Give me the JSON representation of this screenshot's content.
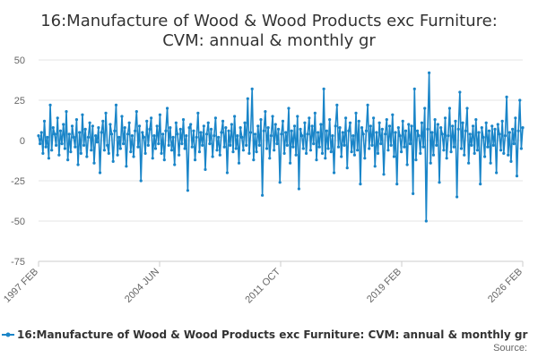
{
  "chart_data": {
    "type": "line",
    "title_line1": "16:Manufacture of Wood & Wood Products exc Furniture:",
    "title_line2": "CVM: annual & monthly gr",
    "ylim": [
      -75,
      50
    ],
    "yticks": [
      50,
      25,
      0,
      -25,
      -50,
      -75
    ],
    "xticks": [
      "1997 FEB",
      "2004 JUN",
      "2011 OCT",
      "2019 FEB",
      "2026 FEB"
    ],
    "grid": true,
    "legend_position": "bottom",
    "color": "#1a85c8",
    "x_start": "1997 FEB",
    "x_end": "2026 FEB",
    "series": [
      {
        "name": "16:Manufacture of Wood & Wood Products exc Furniture: CVM: annual & monthly gr",
        "values": [
          3,
          -2,
          5,
          -8,
          12,
          -4,
          2,
          -11,
          22,
          -6,
          8,
          4,
          -3,
          14,
          -9,
          6,
          -2,
          10,
          -5,
          18,
          -12,
          4,
          -7,
          9,
          2,
          -4,
          13,
          -15,
          5,
          -8,
          16,
          -3,
          7,
          -10,
          2,
          11,
          -6,
          9,
          -14,
          3,
          -1,
          8,
          -20,
          5,
          12,
          -6,
          17,
          -3,
          -8,
          10,
          4,
          -13,
          6,
          22,
          -9,
          2,
          -5,
          15,
          -2,
          8,
          -16,
          4,
          11,
          -7,
          3,
          -10,
          6,
          18,
          -4,
          9,
          -25,
          5,
          2,
          -8,
          12,
          -3,
          7,
          14,
          -11,
          3,
          -5,
          9,
          -2,
          16,
          -8,
          4,
          -12,
          6,
          20,
          -3,
          8,
          -6,
          2,
          -15,
          11,
          4,
          -9,
          7,
          -2,
          13,
          -5,
          3,
          -31,
          8,
          10,
          -4,
          6,
          -12,
          2,
          17,
          -7,
          5,
          -3,
          9,
          -18,
          4,
          11,
          -2,
          7,
          -10,
          3,
          14,
          -6,
          2,
          -9,
          5,
          12,
          -4,
          8,
          -20,
          6,
          -3,
          10,
          -7,
          15,
          -5,
          3,
          -14,
          8,
          2,
          -6,
          11,
          -3,
          26,
          -8,
          5,
          32,
          -12,
          4,
          -7,
          9,
          -3,
          13,
          -34,
          6,
          18,
          -5,
          8,
          -11,
          3,
          15,
          -6,
          10,
          -2,
          7,
          -26,
          4,
          12,
          -8,
          5,
          -3,
          20,
          -14,
          6,
          -4,
          9,
          -9,
          15,
          -30,
          7,
          3,
          -5,
          11,
          -8,
          4,
          14,
          -6,
          9,
          -2,
          17,
          -12,
          5,
          -4,
          10,
          -8,
          32,
          -11,
          6,
          -5,
          13,
          -7,
          3,
          -20,
          9,
          22,
          -4,
          8,
          -10,
          5,
          -3,
          14,
          -17,
          6,
          11,
          -7,
          3,
          -9,
          17,
          -6,
          12,
          -27,
          8,
          4,
          -11,
          6,
          22,
          -5,
          9,
          -3,
          14,
          -16,
          5,
          -8,
          11,
          -2,
          7,
          -21,
          4,
          13,
          -6,
          9,
          -3,
          16,
          -10,
          5,
          -27,
          8,
          3,
          -7,
          12,
          -4,
          6,
          -15,
          10,
          -2,
          9,
          -33,
          32,
          -12,
          6,
          3,
          -8,
          11,
          -4,
          20,
          -50,
          7,
          42,
          -14,
          5,
          -9,
          13,
          -3,
          10,
          -26,
          8,
          4,
          -6,
          14,
          -11,
          3,
          20,
          -7,
          9,
          -4,
          12,
          -35,
          7,
          30,
          -5,
          11,
          -9,
          6,
          20,
          -14,
          4,
          -3,
          9,
          -8,
          13,
          -6,
          5,
          -27,
          8,
          2,
          -10,
          11,
          -4,
          6,
          -14,
          9,
          -3,
          7,
          -20,
          10,
          4,
          -6,
          12,
          -8,
          3,
          27,
          -9,
          5,
          -13,
          7,
          -2,
          14,
          -22,
          6,
          25,
          -5,
          8
        ]
      }
    ],
    "source_label": "Source:"
  }
}
